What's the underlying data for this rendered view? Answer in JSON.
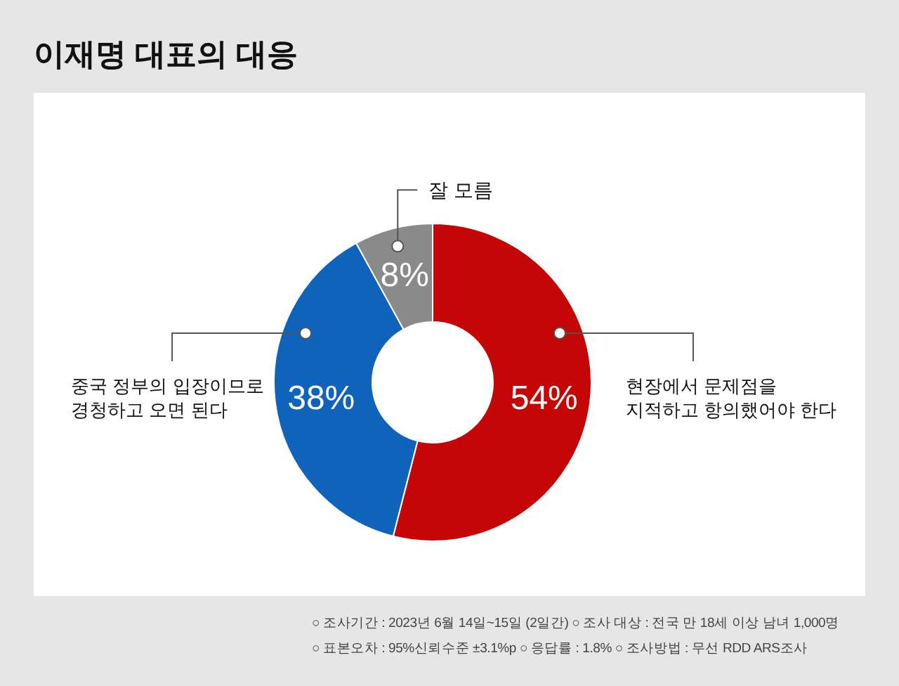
{
  "chart_data": {
    "type": "donut",
    "title": "이재명 대표의 대응",
    "categories": [
      "현장에서 문제점을\n지적하고 항의했어야 한다",
      "중국 정부의 입장이므로\n경청하고 오면 된다",
      "잘 모름"
    ],
    "values": [
      54,
      38,
      8
    ],
    "colors": [
      "#c50606",
      "#1063bb",
      "#8a8a8a"
    ],
    "value_labels": [
      "54%",
      "38%",
      "8%"
    ],
    "annotations": [
      "○ 조사기간 : 2023년 6월 14일~15일 (2일간)  ○ 조사 대상 : 전국 만 18세 이상 남녀 1,000명",
      "○ 표본오차 : 95%신뢰수준 ±3.1%p  ○ 응답률 : 1.8%  ○ 조사방법 : 무선 RDD ARS조사"
    ]
  }
}
